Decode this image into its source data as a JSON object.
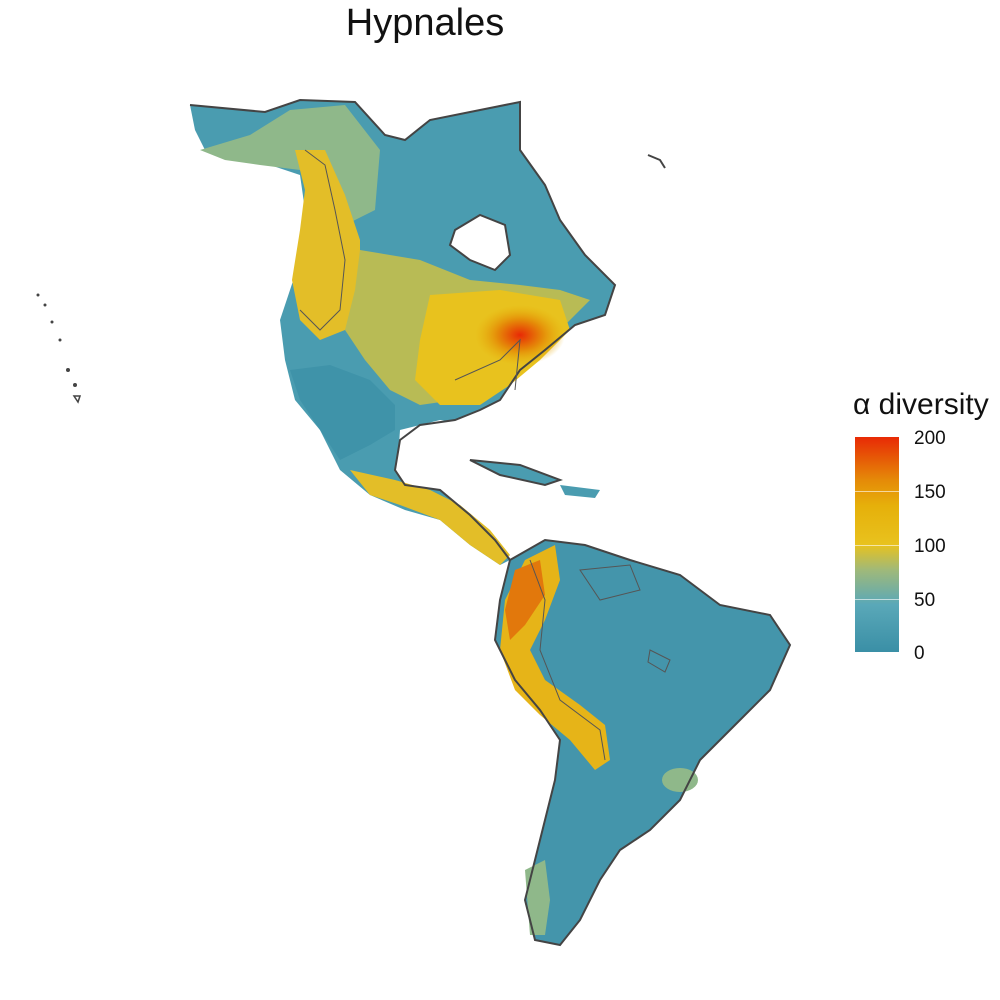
{
  "title": "Hypnales",
  "legend": {
    "title": "α diversity",
    "ticks": [
      "200",
      "150",
      "100",
      "50",
      "0"
    ],
    "range": [
      0,
      200
    ]
  },
  "colors": {
    "low": "#3a8fa6",
    "mid_low": "#5aa8b8",
    "mid": "#e8c21e",
    "high": "#e58a08",
    "max": "#e82a05",
    "outline": "#444444"
  }
}
